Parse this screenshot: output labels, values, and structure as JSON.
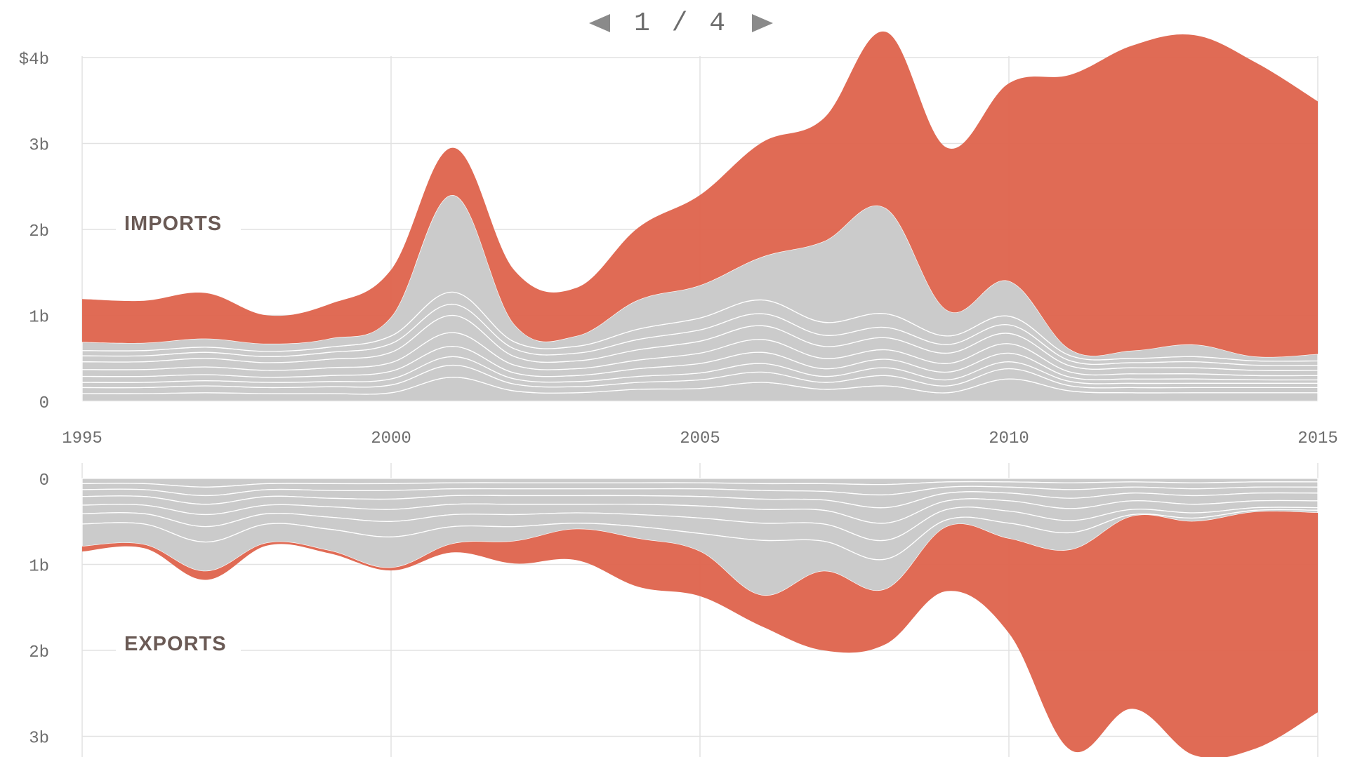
{
  "pager": {
    "label": "1 / 4",
    "prev_icon": "triangle-left-icon",
    "next_icon": "triangle-right-icon"
  },
  "colors": {
    "highlight": "#df6650",
    "others": "#cbcbcb",
    "stroke": "#ffffff",
    "grid": "#e2e2e2"
  },
  "chart_data": [
    {
      "type": "area",
      "label": "IMPORTS",
      "x": [
        1995,
        1996,
        1997,
        1998,
        1999,
        2000,
        2001,
        2002,
        2003,
        2004,
        2005,
        2006,
        2007,
        2008,
        2009,
        2010,
        2011,
        2012,
        2013,
        2014,
        2015
      ],
      "x_ticks": [
        "1995",
        "2000",
        "2005",
        "2010",
        "2015"
      ],
      "y_ticks": [
        "$4b",
        "3b",
        "2b",
        "1b",
        "0"
      ],
      "ylim": [
        0,
        4
      ],
      "series": [
        {
          "values": [
            0.09,
            0.09,
            0.1,
            0.09,
            0.09,
            0.1,
            0.28,
            0.12,
            0.1,
            0.14,
            0.15,
            0.22,
            0.14,
            0.18,
            0.1,
            0.26,
            0.12,
            0.1,
            0.1,
            0.1,
            0.1
          ]
        },
        {
          "values": [
            0.07,
            0.07,
            0.08,
            0.07,
            0.08,
            0.09,
            0.14,
            0.08,
            0.07,
            0.08,
            0.1,
            0.12,
            0.08,
            0.12,
            0.08,
            0.12,
            0.06,
            0.06,
            0.06,
            0.06,
            0.06
          ]
        },
        {
          "values": [
            0.06,
            0.06,
            0.06,
            0.06,
            0.06,
            0.07,
            0.1,
            0.06,
            0.06,
            0.07,
            0.08,
            0.1,
            0.07,
            0.09,
            0.07,
            0.08,
            0.05,
            0.05,
            0.05,
            0.05,
            0.05
          ]
        },
        {
          "values": [
            0.07,
            0.07,
            0.07,
            0.06,
            0.07,
            0.09,
            0.12,
            0.07,
            0.07,
            0.09,
            0.11,
            0.13,
            0.09,
            0.1,
            0.09,
            0.1,
            0.05,
            0.05,
            0.05,
            0.04,
            0.04
          ]
        },
        {
          "values": [
            0.08,
            0.08,
            0.09,
            0.08,
            0.09,
            0.1,
            0.16,
            0.09,
            0.08,
            0.1,
            0.12,
            0.15,
            0.12,
            0.11,
            0.1,
            0.11,
            0.06,
            0.06,
            0.06,
            0.05,
            0.05
          ]
        },
        {
          "values": [
            0.09,
            0.09,
            0.1,
            0.09,
            0.1,
            0.12,
            0.2,
            0.1,
            0.09,
            0.12,
            0.14,
            0.16,
            0.14,
            0.14,
            0.12,
            0.12,
            0.07,
            0.07,
            0.07,
            0.06,
            0.06
          ]
        },
        {
          "values": [
            0.07,
            0.07,
            0.07,
            0.07,
            0.08,
            0.1,
            0.13,
            0.09,
            0.09,
            0.12,
            0.13,
            0.14,
            0.13,
            0.12,
            0.1,
            0.1,
            0.06,
            0.06,
            0.07,
            0.06,
            0.06
          ]
        },
        {
          "values": [
            0.06,
            0.06,
            0.06,
            0.06,
            0.06,
            0.09,
            0.14,
            0.08,
            0.08,
            0.12,
            0.14,
            0.16,
            0.15,
            0.16,
            0.1,
            0.1,
            0.06,
            0.05,
            0.06,
            0.05,
            0.05
          ]
        },
        {
          "values": [
            0.1,
            0.09,
            0.1,
            0.09,
            0.1,
            0.22,
            1.13,
            0.2,
            0.12,
            0.34,
            0.38,
            0.5,
            0.94,
            1.23,
            0.3,
            0.41,
            0.07,
            0.09,
            0.14,
            0.05,
            0.08
          ]
        },
        {
          "values": [
            0.5,
            0.49,
            0.53,
            0.33,
            0.4,
            0.55,
            0.55,
            0.63,
            0.56,
            0.84,
            1.05,
            1.33,
            1.43,
            2.05,
            1.89,
            2.3,
            3.2,
            3.55,
            3.6,
            3.42,
            2.94
          ]
        }
      ]
    },
    {
      "type": "area",
      "label": "EXPORTS",
      "x": [
        1995,
        1996,
        1997,
        1998,
        1999,
        2000,
        2001,
        2002,
        2003,
        2004,
        2005,
        2006,
        2007,
        2008,
        2009,
        2010,
        2011,
        2012,
        2013,
        2014,
        2015
      ],
      "x_ticks": [
        "1995",
        "2000",
        "2005",
        "2010",
        "2015"
      ],
      "y_ticks": [
        "0",
        "1b",
        "2b",
        "3b"
      ],
      "ylim": [
        3.2,
        0
      ],
      "series": [
        {
          "values": [
            0.06,
            0.06,
            0.1,
            0.06,
            0.06,
            0.06,
            0.05,
            0.05,
            0.05,
            0.05,
            0.05,
            0.06,
            0.06,
            0.07,
            0.04,
            0.04,
            0.05,
            0.04,
            0.05,
            0.04,
            0.04
          ]
        },
        {
          "values": [
            0.07,
            0.07,
            0.1,
            0.07,
            0.08,
            0.08,
            0.07,
            0.07,
            0.07,
            0.07,
            0.07,
            0.08,
            0.09,
            0.12,
            0.06,
            0.06,
            0.08,
            0.06,
            0.07,
            0.06,
            0.06
          ]
        },
        {
          "values": [
            0.08,
            0.08,
            0.1,
            0.08,
            0.09,
            0.1,
            0.08,
            0.08,
            0.08,
            0.08,
            0.09,
            0.1,
            0.1,
            0.15,
            0.07,
            0.07,
            0.1,
            0.07,
            0.08,
            0.07,
            0.07
          ]
        },
        {
          "values": [
            0.1,
            0.1,
            0.12,
            0.1,
            0.1,
            0.12,
            0.1,
            0.1,
            0.1,
            0.1,
            0.11,
            0.12,
            0.12,
            0.18,
            0.09,
            0.09,
            0.12,
            0.09,
            0.1,
            0.09,
            0.09
          ]
        },
        {
          "values": [
            0.1,
            0.1,
            0.14,
            0.1,
            0.12,
            0.14,
            0.12,
            0.12,
            0.1,
            0.12,
            0.14,
            0.16,
            0.16,
            0.2,
            0.1,
            0.12,
            0.14,
            0.1,
            0.1,
            0.08,
            0.08
          ]
        },
        {
          "values": [
            0.12,
            0.12,
            0.18,
            0.12,
            0.14,
            0.18,
            0.14,
            0.14,
            0.12,
            0.14,
            0.18,
            0.2,
            0.2,
            0.22,
            0.12,
            0.14,
            0.14,
            0.06,
            0.06,
            0.03,
            0.03
          ]
        },
        {
          "values": [
            0.26,
            0.24,
            0.34,
            0.22,
            0.25,
            0.36,
            0.2,
            0.17,
            0.07,
            0.14,
            0.21,
            0.64,
            0.35,
            0.35,
            0.08,
            0.18,
            0.2,
            0.02,
            0.04,
            0.02,
            0.03
          ]
        },
        {
          "values": [
            0.06,
            0.04,
            0.1,
            0.03,
            0.03,
            0.03,
            0.1,
            0.26,
            0.36,
            0.56,
            0.52,
            0.36,
            0.92,
            0.64,
            0.75,
            1.1,
            2.33,
            2.24,
            2.72,
            2.75,
            2.32
          ]
        }
      ]
    }
  ]
}
